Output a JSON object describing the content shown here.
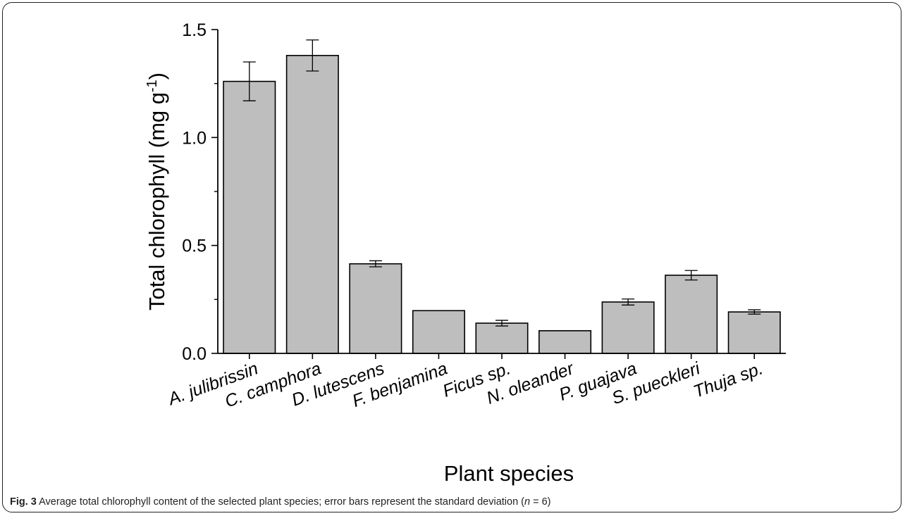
{
  "chart_data": {
    "type": "bar",
    "categories": [
      "A. julibrissin",
      "C. camphora",
      "D. lutescens",
      "F. benjamina",
      "Ficus sp.",
      "N. oleander",
      "P. guajava",
      "S. pueckleri",
      "Thuja sp."
    ],
    "values": [
      1.26,
      1.38,
      0.415,
      0.198,
      0.14,
      0.105,
      0.238,
      0.362,
      0.192
    ],
    "errors": [
      0.09,
      0.072,
      0.014,
      0.002,
      0.013,
      0.001,
      0.014,
      0.022,
      0.01
    ],
    "xlabel": "Plant species",
    "ylabel_main": "Total chlorophyll (mg g",
    "ylabel_sup": "-1",
    "ylabel_end": ")",
    "ylim": [
      0,
      1.5
    ],
    "yticks": [
      "0.0",
      "0.5",
      "1.0",
      "1.5"
    ],
    "grid": false,
    "colors": {
      "bar": "#bebebe",
      "edge": "#000000"
    }
  },
  "caption": {
    "label": "Fig. 3",
    "text": " Average total chlorophyll content of the selected plant species; error bars represent the standard deviation (",
    "n_symbol": "n",
    "n_text": " = 6)"
  }
}
